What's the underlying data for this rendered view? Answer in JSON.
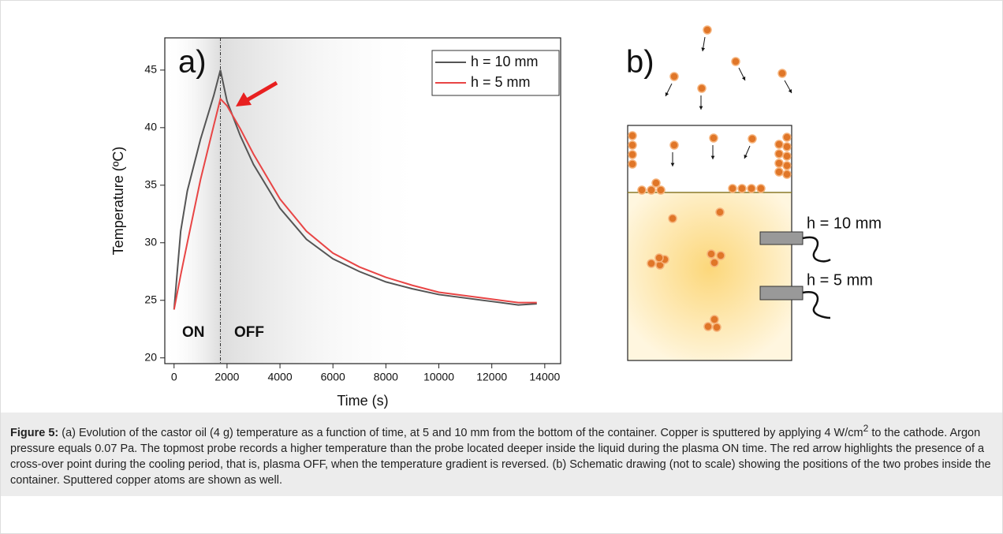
{
  "chart_data": {
    "type": "line",
    "panel_label": "a)",
    "x_label": "Time (s)",
    "y_label": "Temperature (ºC)",
    "x": [
      0,
      250,
      500,
      1000,
      1500,
      1750,
      2000,
      2500,
      3000,
      4000,
      5000,
      6000,
      7000,
      8000,
      9000,
      10000,
      11000,
      12000,
      13000,
      13700
    ],
    "series": [
      {
        "name": "h = 10 mm",
        "color": "#555555",
        "values": [
          24.2,
          31,
          34.5,
          39,
          42.8,
          45,
          42.3,
          39.3,
          36.8,
          33,
          30.3,
          28.6,
          27.5,
          26.6,
          26,
          25.5,
          25.2,
          24.9,
          24.6,
          24.7
        ]
      },
      {
        "name": "h = 5 mm",
        "color": "#e84545",
        "values": [
          24.2,
          27.2,
          30,
          35.5,
          40.2,
          42.5,
          41.9,
          39.9,
          37.7,
          33.8,
          31,
          29.1,
          27.9,
          27,
          26.3,
          25.7,
          25.4,
          25.1,
          24.8,
          24.8
        ]
      }
    ],
    "xlim": [
      -350,
      14600
    ],
    "ylim": [
      19.5,
      47.8
    ],
    "xticks": [
      0,
      2000,
      4000,
      6000,
      8000,
      10000,
      12000,
      14000
    ],
    "yticks": [
      20,
      25,
      30,
      35,
      40,
      45
    ],
    "vline_x": 1750,
    "legend": "upper right",
    "annotations": [
      "ON",
      "OFF"
    ]
  },
  "diagram": {
    "panel_label": "b)",
    "probes": [
      {
        "label": "h = 10 mm"
      },
      {
        "label": "h = 5 mm"
      }
    ]
  },
  "caption": {
    "label": "Figure 5:",
    "text_before": "(a) Evolution of the castor oil (4 g) temperature as a function of time, at 5 and 10 mm from the bottom of the container. Copper is sputtered by applying 4 W/cm",
    "superscript": "2",
    "text_after": " to the cathode. Argon pressure equals 0.07 Pa. The topmost probe records a higher temperature than the probe located deeper inside the liquid during the plasma ON time. The red arrow highlights the presence of a cross-over point during the cooling period, that is, plasma OFF, when the temperature gradient is reversed. (b) Schematic drawing (not to scale) showing the positions of the two probes inside the container. Sputtered copper atoms are shown as well."
  }
}
